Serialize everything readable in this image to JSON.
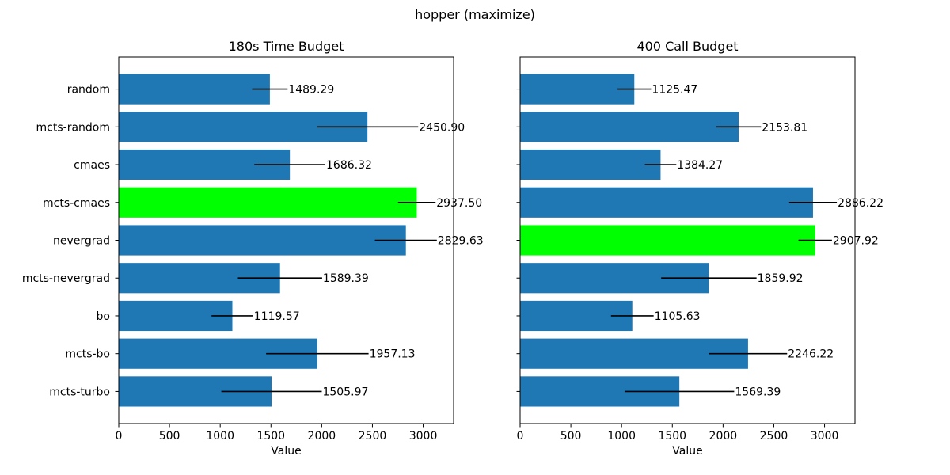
{
  "figure": {
    "suptitle": "hopper (maximize)"
  },
  "colors": {
    "bar": "#1f77b4",
    "best": "#00ff00",
    "error": "#000000"
  },
  "chart_data": [
    {
      "type": "bar",
      "orientation": "horizontal",
      "title": "180s Time Budget",
      "xlabel": "Value",
      "ylabel": "",
      "xlim": [
        0,
        3300
      ],
      "xticks": [
        0,
        500,
        1000,
        1500,
        2000,
        2500,
        3000
      ],
      "categories": [
        "random",
        "mcts-random",
        "cmaes",
        "mcts-cmaes",
        "nevergrad",
        "mcts-nevergrad",
        "bo",
        "mcts-bo",
        "mcts-turbo"
      ],
      "values": [
        1489.29,
        2450.9,
        1686.32,
        2937.5,
        2829.63,
        1589.39,
        1119.57,
        1957.13,
        1505.97
      ],
      "errors": [
        175,
        500,
        350,
        185,
        305,
        415,
        205,
        505,
        495
      ],
      "value_labels": [
        "1489.29",
        "2450.90",
        "1686.32",
        "2937.50",
        "2829.63",
        "1589.39",
        "1119.57",
        "1957.13",
        "1505.97"
      ],
      "highlight": "mcts-cmaes",
      "show_category_labels": true
    },
    {
      "type": "bar",
      "orientation": "horizontal",
      "title": "400 Call Budget",
      "xlabel": "Value",
      "ylabel": "",
      "xlim": [
        0,
        3300
      ],
      "xticks": [
        0,
        500,
        1000,
        1500,
        2000,
        2500,
        3000
      ],
      "categories": [
        "random",
        "mcts-random",
        "cmaes",
        "mcts-cmaes",
        "nevergrad",
        "mcts-nevergrad",
        "bo",
        "mcts-bo",
        "mcts-turbo"
      ],
      "values": [
        1125.47,
        2153.81,
        1384.27,
        2886.22,
        2907.92,
        1859.92,
        1105.63,
        2246.22,
        1569.39
      ],
      "errors": [
        165,
        220,
        155,
        235,
        165,
        470,
        210,
        385,
        540
      ],
      "value_labels": [
        "1125.47",
        "2153.81",
        "1384.27",
        "2886.22",
        "2907.92",
        "1859.92",
        "1105.63",
        "2246.22",
        "1569.39"
      ],
      "highlight": "nevergrad",
      "show_category_labels": false
    }
  ]
}
